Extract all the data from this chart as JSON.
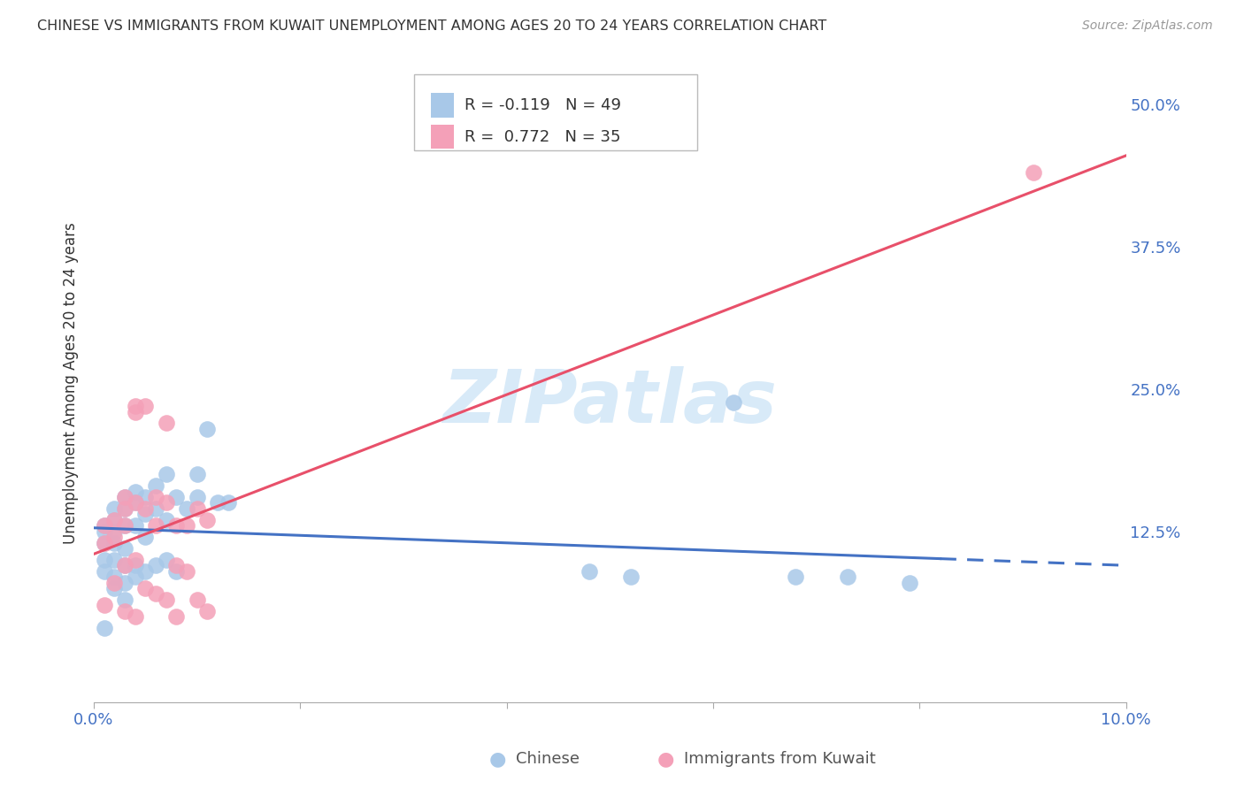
{
  "title": "CHINESE VS IMMIGRANTS FROM KUWAIT UNEMPLOYMENT AMONG AGES 20 TO 24 YEARS CORRELATION CHART",
  "source": "Source: ZipAtlas.com",
  "ylabel": "Unemployment Among Ages 20 to 24 years",
  "legend_R_chinese": "R = -0.119",
  "legend_N_chinese": "N = 49",
  "legend_R_kuwait": "R = 0.772",
  "legend_N_kuwait": "N = 35",
  "legend_label_chinese": "Chinese",
  "legend_label_kuwait": "Immigrants from Kuwait",
  "xmin": 0.0,
  "xmax": 0.1,
  "ymin": -0.025,
  "ymax": 0.535,
  "yticks": [
    0.0,
    0.125,
    0.25,
    0.375,
    0.5
  ],
  "ytick_labels": [
    "",
    "12.5%",
    "25.0%",
    "37.5%",
    "50.0%"
  ],
  "xticks": [
    0.0,
    0.02,
    0.04,
    0.06,
    0.08,
    0.1
  ],
  "xtick_labels": [
    "0.0%",
    "",
    "",
    "",
    "",
    "10.0%"
  ],
  "color_chinese": "#a8c8e8",
  "color_kuwait": "#f4a0b8",
  "color_line_chinese": "#4472c4",
  "color_line_kuwait": "#e8506a",
  "color_tick_labels": "#4472c4",
  "watermark_text": "ZIPatlas",
  "watermark_color": "#d8eaf8",
  "chinese_line_x0": 0.0,
  "chinese_line_x1": 0.1,
  "chinese_line_y0": 0.128,
  "chinese_line_y1": 0.095,
  "kuwait_line_x0": 0.0,
  "kuwait_line_x1": 0.1,
  "kuwait_line_y0": 0.105,
  "kuwait_line_y1": 0.455,
  "chinese_x": [
    0.001,
    0.001,
    0.001,
    0.001,
    0.001,
    0.002,
    0.002,
    0.002,
    0.002,
    0.002,
    0.002,
    0.002,
    0.003,
    0.003,
    0.003,
    0.003,
    0.003,
    0.003,
    0.003,
    0.004,
    0.004,
    0.004,
    0.004,
    0.004,
    0.005,
    0.005,
    0.005,
    0.005,
    0.006,
    0.006,
    0.006,
    0.007,
    0.007,
    0.007,
    0.008,
    0.008,
    0.009,
    0.01,
    0.01,
    0.011,
    0.012,
    0.013,
    0.048,
    0.052,
    0.062,
    0.068,
    0.073,
    0.079,
    0.001
  ],
  "chinese_y": [
    0.13,
    0.125,
    0.115,
    0.1,
    0.09,
    0.145,
    0.135,
    0.125,
    0.115,
    0.1,
    0.085,
    0.075,
    0.155,
    0.145,
    0.13,
    0.11,
    0.095,
    0.08,
    0.065,
    0.16,
    0.15,
    0.13,
    0.095,
    0.085,
    0.155,
    0.14,
    0.12,
    0.09,
    0.165,
    0.145,
    0.095,
    0.175,
    0.135,
    0.1,
    0.155,
    0.09,
    0.145,
    0.175,
    0.155,
    0.215,
    0.15,
    0.15,
    0.09,
    0.085,
    0.238,
    0.085,
    0.085,
    0.08,
    0.04
  ],
  "kuwait_x": [
    0.001,
    0.001,
    0.001,
    0.002,
    0.002,
    0.002,
    0.003,
    0.003,
    0.003,
    0.003,
    0.003,
    0.004,
    0.004,
    0.004,
    0.004,
    0.004,
    0.005,
    0.005,
    0.005,
    0.006,
    0.006,
    0.006,
    0.007,
    0.007,
    0.007,
    0.008,
    0.008,
    0.008,
    0.009,
    0.009,
    0.01,
    0.01,
    0.011,
    0.011,
    0.091
  ],
  "kuwait_y": [
    0.13,
    0.115,
    0.06,
    0.135,
    0.12,
    0.08,
    0.155,
    0.145,
    0.13,
    0.095,
    0.055,
    0.235,
    0.23,
    0.15,
    0.1,
    0.05,
    0.235,
    0.145,
    0.075,
    0.155,
    0.13,
    0.07,
    0.22,
    0.15,
    0.065,
    0.13,
    0.095,
    0.05,
    0.13,
    0.09,
    0.145,
    0.065,
    0.135,
    0.055,
    0.44
  ]
}
